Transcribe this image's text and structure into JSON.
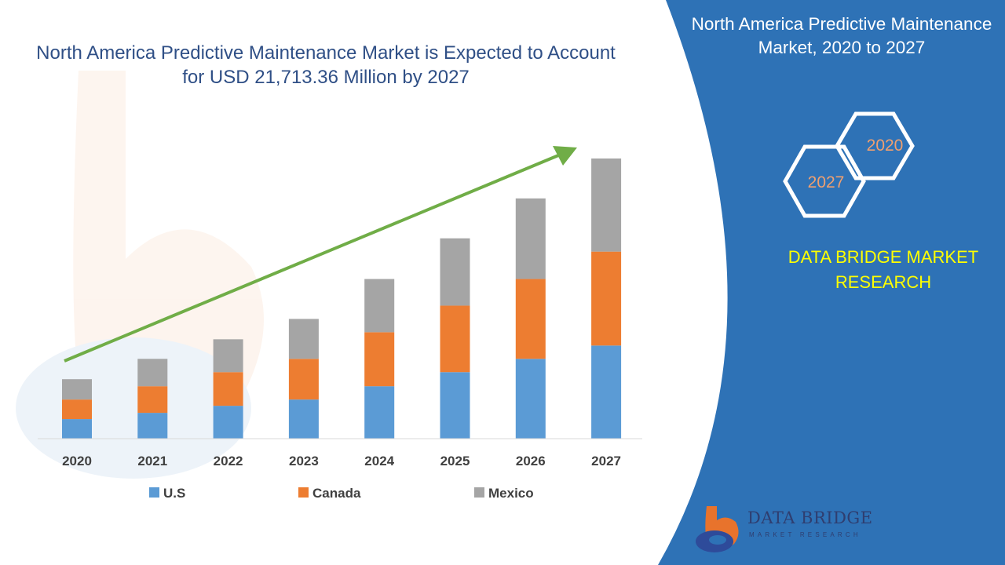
{
  "side_panel": {
    "title": "North America Predictive Maintenance Market, 2020 to 2027",
    "hex_start": "2020",
    "hex_end": "2027",
    "brand": "DATA BRIDGE MARKET RESEARCH",
    "logo_name": "DATA BRIDGE",
    "logo_tagline": "MARKET RESEARCH",
    "panel_color": "#2e72b6",
    "brand_color": "#ffff00"
  },
  "chart_data": {
    "type": "bar",
    "stacked": true,
    "title": "North America Predictive Maintenance Market is Expected to Account for USD 21,713.36 Million by 2027",
    "categories": [
      "2020",
      "2021",
      "2022",
      "2023",
      "2024",
      "2025",
      "2026",
      "2027"
    ],
    "series": [
      {
        "name": "U.S",
        "color": "#5b9bd5",
        "values": [
          25,
          33,
          42,
          50,
          67,
          85,
          102,
          119
        ]
      },
      {
        "name": "Canada",
        "color": "#ed7d31",
        "values": [
          25,
          34,
          43,
          52,
          69,
          85,
          102,
          120
        ]
      },
      {
        "name": "Mexico",
        "color": "#a5a5a5",
        "values": [
          26,
          35,
          42,
          51,
          68,
          86,
          103,
          119
        ]
      }
    ],
    "ylim": [
      0,
      370
    ],
    "y_axis_visible": false,
    "trend_arrow": {
      "color": "#70ad47",
      "direction": "up"
    },
    "legend_position": "bottom"
  }
}
